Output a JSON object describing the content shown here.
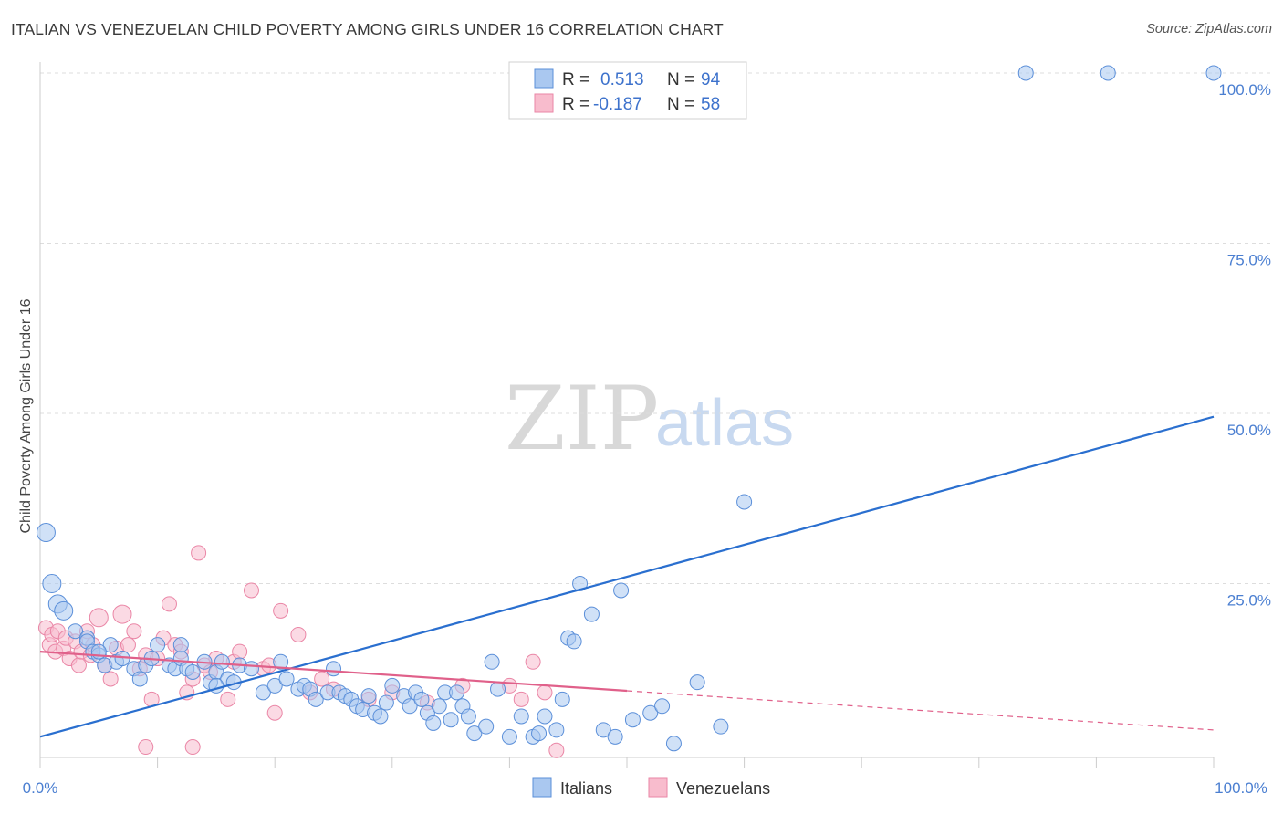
{
  "header": {
    "title": "ITALIAN VS VENEZUELAN CHILD POVERTY AMONG GIRLS UNDER 16 CORRELATION CHART",
    "source": "Source: ZipAtlas.com"
  },
  "watermark": {
    "zip": "ZIP",
    "atlas": "atlas"
  },
  "legend": {
    "rows": [
      {
        "r_label": "R =",
        "r_value": "0.513",
        "n_label": "N =",
        "n_value": "94"
      },
      {
        "r_label": "R =",
        "r_value": "-0.187",
        "n_label": "N =",
        "n_value": "58"
      }
    ]
  },
  "colors": {
    "italians_fill": "#aac8f0",
    "italians_stroke": "#5b8fd9",
    "italians_line": "#2a6fcf",
    "venezuelans_fill": "#f8bccd",
    "venezuelans_stroke": "#ea86a6",
    "venezuelans_line": "#e0608a",
    "tick_label": "#4b7fd1",
    "grid": "#dddddd"
  },
  "chart_data": {
    "type": "scatter",
    "title": "ITALIAN VS VENEZUELAN CHILD POVERTY AMONG GIRLS UNDER 16 CORRELATION CHART",
    "xlabel": "",
    "ylabel": "Child Poverty Among Girls Under 16",
    "xlim": [
      0,
      100
    ],
    "ylim": [
      0,
      100
    ],
    "x_tick_labels": [
      "0.0%",
      "100.0%"
    ],
    "y_ticks": [
      25,
      50,
      75,
      100
    ],
    "y_tick_labels": [
      "25.0%",
      "50.0%",
      "75.0%",
      "100.0%"
    ],
    "grid": true,
    "legend_position": "bottom",
    "series": [
      {
        "name": "Italians",
        "r": 0.513,
        "n": 94,
        "trend": {
          "x": [
            0,
            100
          ],
          "y": [
            2.5,
            49.5
          ],
          "dashed_from": null
        },
        "points": [
          [
            0.5,
            32.5
          ],
          [
            1,
            25
          ],
          [
            1.5,
            22
          ],
          [
            2,
            21
          ],
          [
            3,
            18
          ],
          [
            4,
            17
          ],
          [
            4,
            16.5
          ],
          [
            4.5,
            15
          ],
          [
            5,
            14.5
          ],
          [
            5.5,
            13
          ],
          [
            6,
            16
          ],
          [
            6.5,
            13.5
          ],
          [
            7,
            14
          ],
          [
            8,
            12.5
          ],
          [
            8.5,
            11
          ],
          [
            9,
            13
          ],
          [
            9.5,
            14
          ],
          [
            10,
            16
          ],
          [
            11,
            13
          ],
          [
            11.5,
            12.5
          ],
          [
            12,
            14
          ],
          [
            12.5,
            12.5
          ],
          [
            13,
            12
          ],
          [
            14,
            13.5
          ],
          [
            14.5,
            10.5
          ],
          [
            15,
            12
          ],
          [
            15.5,
            13.5
          ],
          [
            16,
            11
          ],
          [
            16.5,
            10.5
          ],
          [
            17,
            13
          ],
          [
            18,
            12.5
          ],
          [
            19,
            9
          ],
          [
            20,
            10
          ],
          [
            20.5,
            13.5
          ],
          [
            21,
            11
          ],
          [
            22,
            9.5
          ],
          [
            22.5,
            10
          ],
          [
            23,
            9.5
          ],
          [
            23.5,
            8
          ],
          [
            24.5,
            9
          ],
          [
            25,
            12.5
          ],
          [
            25.5,
            9
          ],
          [
            26,
            8.5
          ],
          [
            26.5,
            8
          ],
          [
            27,
            7
          ],
          [
            27.5,
            6.5
          ],
          [
            28,
            8.5
          ],
          [
            28.5,
            6
          ],
          [
            29,
            5.5
          ],
          [
            29.5,
            7.5
          ],
          [
            30,
            10
          ],
          [
            31,
            8.5
          ],
          [
            31.5,
            7
          ],
          [
            32,
            9
          ],
          [
            32.5,
            8
          ],
          [
            33,
            6
          ],
          [
            33.5,
            4.5
          ],
          [
            34,
            7
          ],
          [
            34.5,
            9
          ],
          [
            35,
            5
          ],
          [
            35.5,
            9
          ],
          [
            36,
            7
          ],
          [
            36.5,
            5.5
          ],
          [
            37,
            3
          ],
          [
            38,
            4
          ],
          [
            38.5,
            13.5
          ],
          [
            39,
            9.5
          ],
          [
            40,
            2.5
          ],
          [
            41,
            5.5
          ],
          [
            42,
            2.5
          ],
          [
            42.5,
            3
          ],
          [
            43,
            5.5
          ],
          [
            44,
            3.5
          ],
          [
            44.5,
            8
          ],
          [
            45,
            17
          ],
          [
            45.5,
            16.5
          ],
          [
            46,
            25
          ],
          [
            47,
            20.5
          ],
          [
            48,
            3.5
          ],
          [
            49,
            2.5
          ],
          [
            49.5,
            24
          ],
          [
            50.5,
            5
          ],
          [
            52,
            6
          ],
          [
            53,
            7
          ],
          [
            54,
            1.5
          ],
          [
            56,
            10.5
          ],
          [
            58,
            4
          ],
          [
            60,
            37
          ],
          [
            84,
            100
          ],
          [
            91,
            100
          ],
          [
            100,
            100
          ],
          [
            5,
            15
          ],
          [
            12,
            16
          ],
          [
            15,
            10
          ]
        ]
      },
      {
        "name": "Venezuelans",
        "r": -0.187,
        "n": 58,
        "trend": {
          "x": [
            0,
            100
          ],
          "y": [
            15,
            3.5
          ],
          "dashed_from": 50
        },
        "points": [
          [
            0.5,
            18.5
          ],
          [
            0.8,
            16
          ],
          [
            1,
            17.5
          ],
          [
            1.3,
            15
          ],
          [
            1.5,
            18
          ],
          [
            2,
            15.5
          ],
          [
            2.2,
            17
          ],
          [
            2.5,
            14
          ],
          [
            3,
            16.5
          ],
          [
            3.3,
            13
          ],
          [
            3.5,
            15
          ],
          [
            4,
            18
          ],
          [
            4.3,
            14.5
          ],
          [
            4.5,
            16
          ],
          [
            5,
            20
          ],
          [
            5.5,
            13
          ],
          [
            6,
            11
          ],
          [
            6.5,
            15.5
          ],
          [
            7,
            20.5
          ],
          [
            7.5,
            16
          ],
          [
            8,
            18
          ],
          [
            8.5,
            12.5
          ],
          [
            9,
            14.5
          ],
          [
            9.5,
            8
          ],
          [
            10,
            14
          ],
          [
            10.5,
            17
          ],
          [
            11,
            22
          ],
          [
            11.5,
            16
          ],
          [
            12,
            15
          ],
          [
            12.5,
            9
          ],
          [
            13,
            11
          ],
          [
            13.5,
            29.5
          ],
          [
            14,
            13
          ],
          [
            14.5,
            12
          ],
          [
            15,
            14
          ],
          [
            16,
            8
          ],
          [
            16.5,
            13.5
          ],
          [
            17,
            15
          ],
          [
            18,
            24
          ],
          [
            19,
            12.5
          ],
          [
            19.5,
            13
          ],
          [
            20,
            6
          ],
          [
            20.5,
            21
          ],
          [
            22,
            17.5
          ],
          [
            23,
            9
          ],
          [
            24,
            11
          ],
          [
            25,
            9.5
          ],
          [
            28,
            8
          ],
          [
            30,
            9
          ],
          [
            33,
            7.5
          ],
          [
            36,
            10
          ],
          [
            40,
            10
          ],
          [
            41,
            8
          ],
          [
            42,
            13.5
          ],
          [
            43,
            9
          ],
          [
            44,
            0.5
          ],
          [
            13,
            1
          ],
          [
            9,
            1
          ]
        ]
      }
    ]
  },
  "bottom_legend": {
    "items": [
      "Italians",
      "Venezuelans"
    ]
  }
}
